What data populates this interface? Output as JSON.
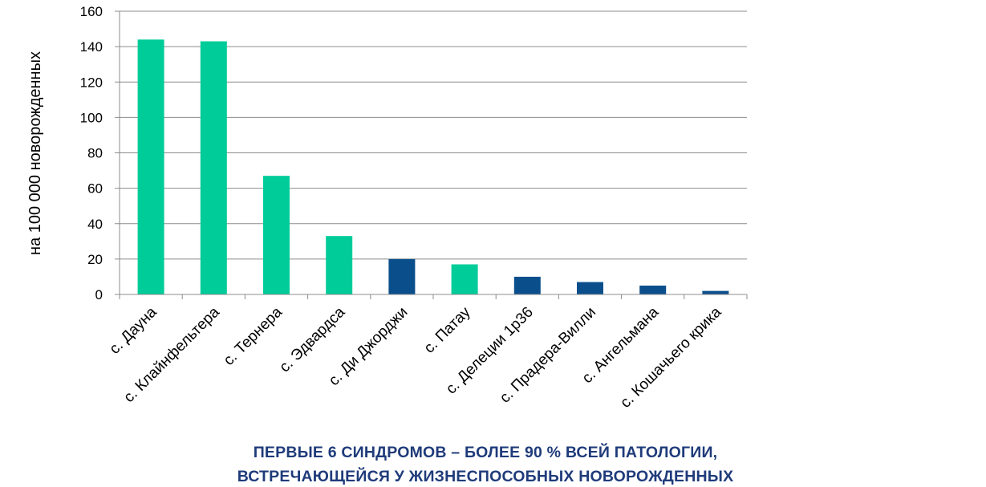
{
  "chart_data": {
    "type": "bar",
    "categories": [
      "с. Дауна",
      "с. Клайнфельтера",
      "с. Тернера",
      "с. Эдвардса",
      "с. Ди Джорджи",
      "с. Патау",
      "с. Делеции 1р36",
      "с. Прадера-Вилли",
      "с. Ангельмана",
      "с. Кошачьего крика"
    ],
    "values": [
      144,
      143,
      67,
      33,
      20,
      17,
      10,
      7,
      5,
      2
    ],
    "bar_colors": [
      "#00cc99",
      "#00cc99",
      "#00cc99",
      "#00cc99",
      "#0a4f8c",
      "#00cc99",
      "#0a4f8c",
      "#0a4f8c",
      "#0a4f8c",
      "#0a4f8c"
    ],
    "ylabel": "на 100 000 новорожденных",
    "xlabel": "",
    "ylim": [
      0,
      160
    ],
    "yticks": [
      "0",
      "20",
      "40",
      "60",
      "80",
      "100",
      "120",
      "140",
      "160"
    ],
    "grid": true,
    "legend": "none"
  },
  "caption": {
    "line1": "ПЕРВЫЕ 6 СИНДРОМОВ – БОЛЕЕ 90 % ВСЕЙ ПАТОЛОГИИ,",
    "line2": "ВСТРЕЧАЮЩЕЙСЯ У ЖИЗНЕСПОСОБНЫХ НОВОРОЖДЕННЫХ"
  },
  "colors": {
    "teal_bar": "#00cc99",
    "navy_bar": "#0a4f8c",
    "caption_text": "#1f3b7a",
    "grid": "#8c8c8c"
  }
}
